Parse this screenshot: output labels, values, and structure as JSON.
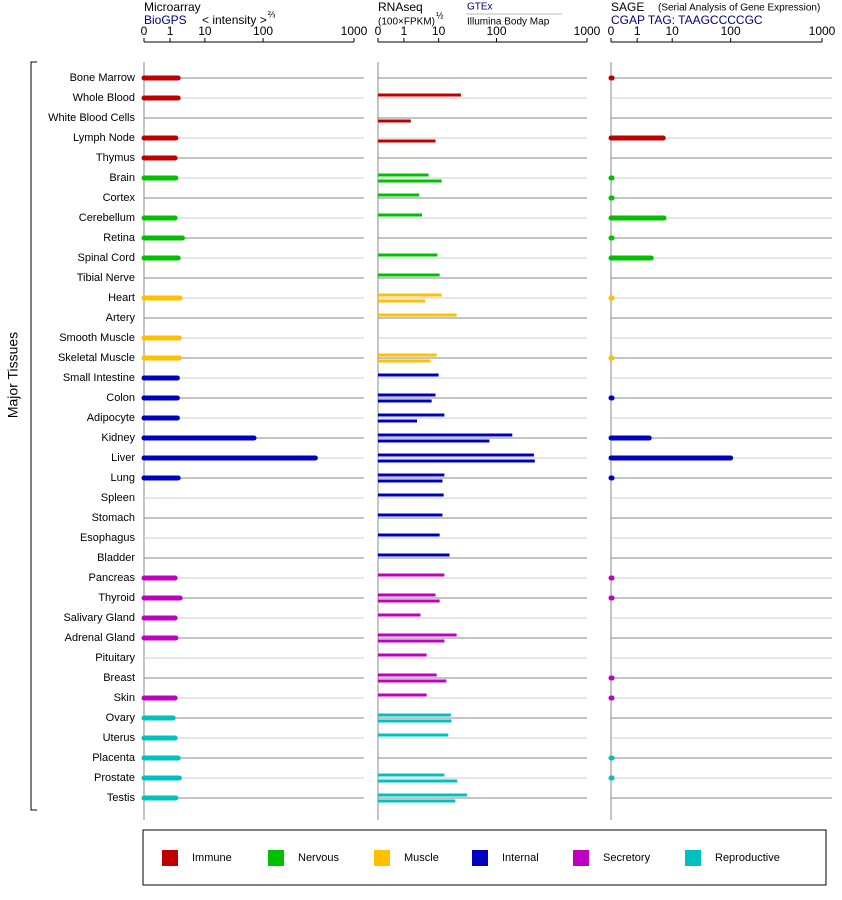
{
  "y_label": "Major Tissues",
  "tissues": [
    "Bone Marrow",
    "Whole Blood",
    "White Blood Cells",
    "Lymph Node",
    "Thymus",
    "Brain",
    "Cortex",
    "Cerebellum",
    "Retina",
    "Spinal Cord",
    "Tibial Nerve",
    "Heart",
    "Artery",
    "Smooth Muscle",
    "Skeletal Muscle",
    "Small Intestine",
    "Colon",
    "Adipocyte",
    "Kidney",
    "Liver",
    "Lung",
    "Spleen",
    "Stomach",
    "Esophagus",
    "Bladder",
    "Pancreas",
    "Thyroid",
    "Salivary Gland",
    "Adrenal Gland",
    "Pituitary",
    "Breast",
    "Skin",
    "Ovary",
    "Uterus",
    "Placenta",
    "Prostate",
    "Testis"
  ],
  "tissue_groups": [
    "Immune",
    "Immune",
    "Immune",
    "Immune",
    "Immune",
    "Nervous",
    "Nervous",
    "Nervous",
    "Nervous",
    "Nervous",
    "Nervous",
    "Muscle",
    "Muscle",
    "Muscle",
    "Muscle",
    "Internal",
    "Internal",
    "Internal",
    "Internal",
    "Internal",
    "Internal",
    "Internal",
    "Internal",
    "Internal",
    "Internal",
    "Secretory",
    "Secretory",
    "Secretory",
    "Secretory",
    "Secretory",
    "Secretory",
    "Secretory",
    "Reproductive",
    "Reproductive",
    "Reproductive",
    "Reproductive",
    "Reproductive"
  ],
  "legend": [
    {
      "name": "Immune",
      "color": "#c00000"
    },
    {
      "name": "Nervous",
      "color": "#00c000"
    },
    {
      "name": "Muscle",
      "color": "#ffc000"
    },
    {
      "name": "Internal",
      "color": "#0000c0"
    },
    {
      "name": "Secretory",
      "color": "#c000c0"
    },
    {
      "name": "Reproductive",
      "color": "#00c0c0"
    }
  ],
  "chart_data": [
    {
      "type": "bar",
      "title": "Microarray",
      "subtitle": "BioGPS",
      "x_label": "< intensity >",
      "x_label_exponent": "⅔",
      "xlim": [
        0,
        1000
      ],
      "xticks": [
        0,
        1,
        10,
        100,
        1000
      ],
      "series": [
        {
          "name": null,
          "values": [
            3.1,
            3.1,
            null,
            2.5,
            2.3,
            2.5,
            null,
            2.3,
            4.2,
            3.1,
            null,
            3.6,
            null,
            3.4,
            3.4,
            2.9,
            2.9,
            2.9,
            86,
            618,
            3.1,
            null,
            null,
            null,
            null,
            2.3,
            3.6,
            2.3,
            2.5,
            null,
            null,
            2.3,
            1.8,
            2.3,
            3.1,
            3.4,
            2.5
          ]
        }
      ]
    },
    {
      "type": "bar",
      "title": "RNAseq",
      "x_label": "(100×FPKM)",
      "x_label_exponent": "½",
      "xlim": [
        0,
        1000
      ],
      "xticks": [
        0,
        1,
        10,
        100,
        1000
      ],
      "series": [
        {
          "name": "GTEx",
          "values": [
            null,
            44.7,
            null,
            null,
            null,
            7.4,
            4.9,
            5.7,
            null,
            9.7,
            11.6,
            14.7,
            38,
            null,
            9.5,
            10,
            9.2,
            19,
            257,
            472,
            19,
            17.9,
            16,
            11.6,
            27,
            19,
            9.2,
            5.3,
            38,
            6.9,
            9.5,
            6.9,
            29,
            25,
            null,
            19,
            54
          ]
        },
        {
          "name": "Illumina Body Map",
          "values": [
            null,
            null,
            2.8,
            9.2,
            null,
            14.7,
            null,
            null,
            null,
            null,
            null,
            6.5,
            null,
            null,
            7.9,
            null,
            8.2,
            4.4,
            89,
            481,
            16,
            null,
            null,
            null,
            null,
            null,
            11.6,
            null,
            19,
            null,
            22,
            null,
            30,
            null,
            null,
            39,
            36
          ]
        }
      ]
    },
    {
      "type": "bar",
      "title": "SAGE",
      "subtitle": "(Serial Analysis of Gene Expression)",
      "tag": "CGAP TAG: TAAGCCCCGC",
      "xlim": [
        0,
        1000
      ],
      "xticks": [
        0,
        1,
        10,
        100,
        1000
      ],
      "series": [
        {
          "name": null,
          "values": [
            0.04,
            null,
            null,
            7.7,
            null,
            0.04,
            0.04,
            7.9,
            0.04,
            4.6,
            null,
            0.04,
            null,
            null,
            0.04,
            null,
            0.04,
            null,
            4.1,
            100,
            0.04,
            null,
            null,
            null,
            null,
            0.04,
            0.04,
            null,
            null,
            null,
            0.04,
            0.04,
            null,
            null,
            0.04,
            0.04,
            null
          ]
        }
      ]
    }
  ]
}
